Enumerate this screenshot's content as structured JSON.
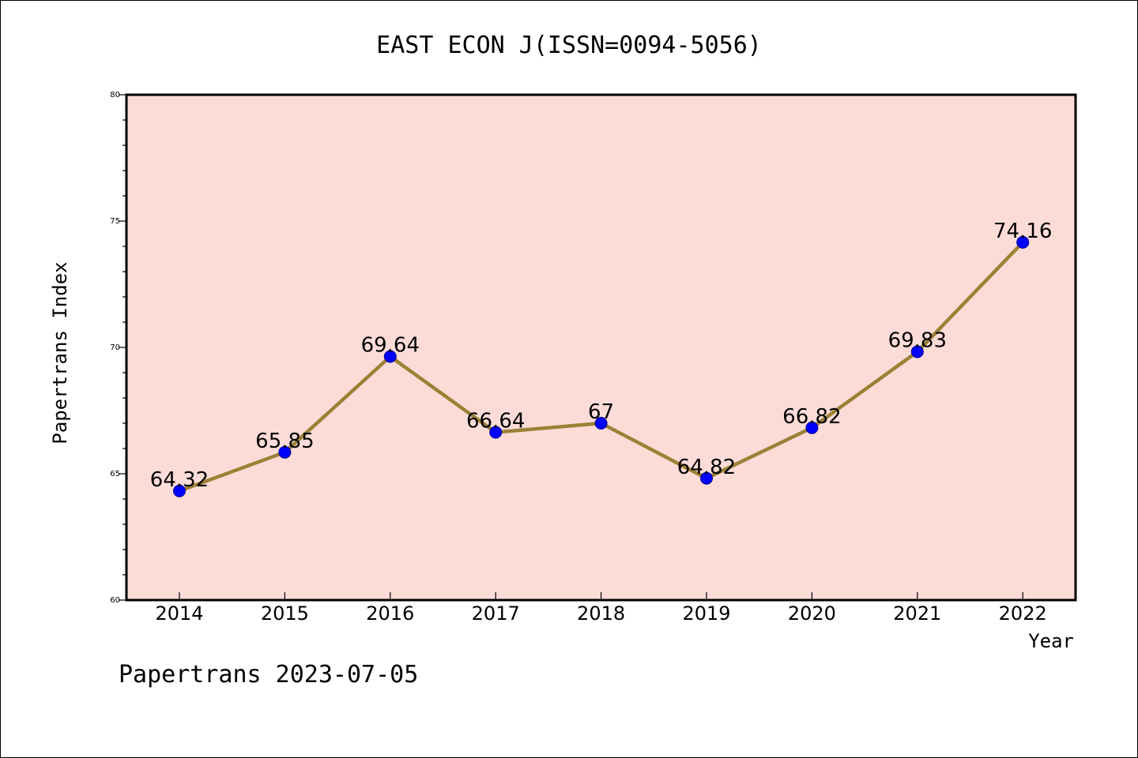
{
  "chart_data": {
    "type": "line",
    "title": "EAST ECON J(ISSN=0094-5056)",
    "xlabel": "Year",
    "ylabel": "Papertrans Index",
    "categories": [
      "2014",
      "2015",
      "2016",
      "2017",
      "2018",
      "2019",
      "2020",
      "2021",
      "2022"
    ],
    "series": [
      {
        "values": [
          64.32,
          65.85,
          69.64,
          66.64,
          67,
          64.82,
          66.82,
          69.83,
          74.16
        ],
        "labels": [
          "64.32",
          "65.85",
          "69.64",
          "66.64",
          "67",
          "64.82",
          "66.82",
          "69.83",
          "74.16"
        ]
      }
    ],
    "ylim": [
      60,
      80
    ],
    "yticks": [
      "60",
      "65",
      "70",
      "75",
      "80"
    ],
    "grid": false,
    "colors": {
      "plot_background": "#fddcd8",
      "line": "#9b8135",
      "marker": "#0000ff"
    }
  },
  "footer": "Papertrans 2023-07-05"
}
